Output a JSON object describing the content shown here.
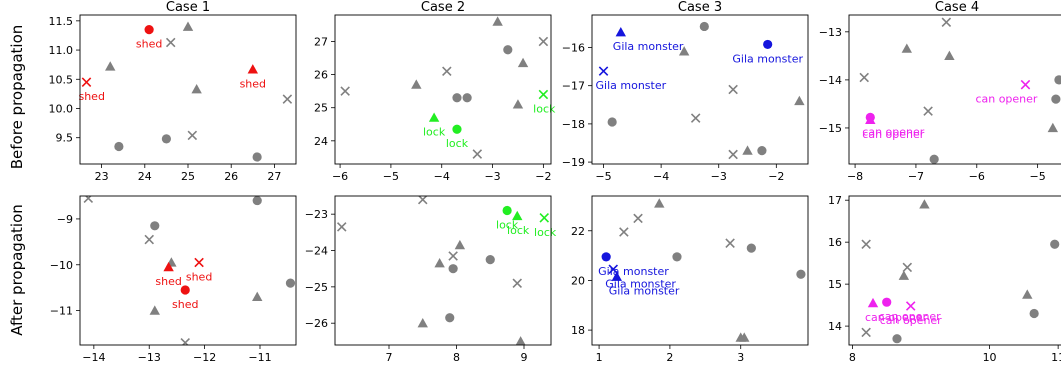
{
  "row_labels": [
    "Before propagation",
    "After propagation"
  ],
  "colors": {
    "gray": "#808080",
    "shed": "#ee1111",
    "lock": "#22ee22",
    "gila": "#1515dd",
    "opener": "#ee22ee"
  },
  "chart_data": [
    {
      "type": "scatter",
      "title": "Case 1",
      "row": 0,
      "col": 0,
      "xlim": [
        22.5,
        27.5
      ],
      "ylim": [
        9.05,
        11.6
      ],
      "xticks": [
        23,
        24,
        25,
        26,
        27
      ],
      "yticks": [
        9.5,
        10.0,
        10.5,
        11.0,
        11.5
      ],
      "xtick_labels": [
        "23",
        "24",
        "25",
        "26",
        "27"
      ],
      "ytick_labels": [
        "9.5",
        "10.0",
        "10.5",
        "11.0",
        "11.5"
      ],
      "background": [
        {
          "x": 25.0,
          "y": 11.4,
          "m": "triangle"
        },
        {
          "x": 24.6,
          "y": 11.13,
          "m": "x"
        },
        {
          "x": 23.2,
          "y": 10.72,
          "m": "triangle"
        },
        {
          "x": 25.2,
          "y": 10.33,
          "m": "triangle"
        },
        {
          "x": 27.3,
          "y": 10.16,
          "m": "x"
        },
        {
          "x": 25.1,
          "y": 9.54,
          "m": "x"
        },
        {
          "x": 24.5,
          "y": 9.48,
          "m": "circle"
        },
        {
          "x": 23.4,
          "y": 9.35,
          "m": "circle"
        },
        {
          "x": 26.6,
          "y": 9.17,
          "m": "circle"
        }
      ],
      "highlight": [
        {
          "x": 24.1,
          "y": 11.35,
          "m": "circle",
          "label": "shed",
          "color": "shed"
        },
        {
          "x": 26.5,
          "y": 10.67,
          "m": "triangle",
          "label": "shed",
          "color": "shed"
        },
        {
          "x": 22.65,
          "y": 10.45,
          "m": "x",
          "label": "shed",
          "color": "shed"
        }
      ]
    },
    {
      "type": "scatter",
      "title": "Case 2",
      "row": 0,
      "col": 1,
      "xlim": [
        -6.1,
        -1.85
      ],
      "ylim": [
        23.3,
        27.8
      ],
      "xticks": [
        -6,
        -5,
        -4,
        -3,
        -2
      ],
      "yticks": [
        24,
        25,
        26,
        27
      ],
      "xtick_labels": [
        "−6",
        "−5",
        "−4",
        "−3",
        "−2"
      ],
      "ytick_labels": [
        "24",
        "25",
        "26",
        "27"
      ],
      "background": [
        {
          "x": -2.9,
          "y": 27.6,
          "m": "triangle"
        },
        {
          "x": -2.0,
          "y": 27.0,
          "m": "x"
        },
        {
          "x": -2.7,
          "y": 26.75,
          "m": "circle"
        },
        {
          "x": -2.4,
          "y": 26.35,
          "m": "triangle"
        },
        {
          "x": -3.9,
          "y": 26.1,
          "m": "x"
        },
        {
          "x": -4.5,
          "y": 25.7,
          "m": "triangle"
        },
        {
          "x": -5.9,
          "y": 25.5,
          "m": "x"
        },
        {
          "x": -3.7,
          "y": 25.3,
          "m": "circle"
        },
        {
          "x": -3.5,
          "y": 25.3,
          "m": "circle"
        },
        {
          "x": -2.5,
          "y": 25.1,
          "m": "triangle"
        },
        {
          "x": -3.3,
          "y": 23.6,
          "m": "x"
        }
      ],
      "highlight": [
        {
          "x": -2.0,
          "y": 25.4,
          "m": "x",
          "label": "lock",
          "color": "lock"
        },
        {
          "x": -4.15,
          "y": 24.7,
          "m": "triangle",
          "label": "lock",
          "color": "lock"
        },
        {
          "x": -3.7,
          "y": 24.35,
          "m": "circle",
          "label": "lock",
          "color": "lock"
        }
      ]
    },
    {
      "type": "scatter",
      "title": "Case 3",
      "row": 0,
      "col": 2,
      "xlim": [
        -5.2,
        -1.45
      ],
      "ylim": [
        -19.05,
        -15.15
      ],
      "xticks": [
        -5,
        -4,
        -3,
        -2
      ],
      "yticks": [
        -19,
        -18,
        -17,
        -16
      ],
      "xtick_labels": [
        "−5",
        "−4",
        "−3",
        "−2"
      ],
      "ytick_labels": [
        "−19",
        "−18",
        "−17",
        "−16"
      ],
      "background": [
        {
          "x": -3.25,
          "y": -15.45,
          "m": "circle"
        },
        {
          "x": -3.6,
          "y": -16.1,
          "m": "triangle"
        },
        {
          "x": -2.75,
          "y": -17.1,
          "m": "x"
        },
        {
          "x": -1.6,
          "y": -17.4,
          "m": "triangle"
        },
        {
          "x": -3.4,
          "y": -17.85,
          "m": "x"
        },
        {
          "x": -4.85,
          "y": -17.95,
          "m": "circle"
        },
        {
          "x": -2.25,
          "y": -18.7,
          "m": "circle"
        },
        {
          "x": -2.5,
          "y": -18.7,
          "m": "triangle"
        },
        {
          "x": -2.75,
          "y": -18.8,
          "m": "x"
        }
      ],
      "highlight": [
        {
          "x": -4.7,
          "y": -15.6,
          "m": "triangle",
          "label": "Gila monster",
          "color": "gila"
        },
        {
          "x": -2.15,
          "y": -15.92,
          "m": "circle",
          "label": "Gila monster",
          "color": "gila"
        },
        {
          "x": -5.0,
          "y": -16.62,
          "m": "x",
          "label": "Gila monster",
          "color": "gila"
        }
      ]
    },
    {
      "type": "scatter",
      "title": "Case 4",
      "row": 0,
      "col": 3,
      "xlim": [
        -8.1,
        -4.55
      ],
      "ylim": [
        -15.75,
        -12.65
      ],
      "xticks": [
        -8,
        -7,
        -6,
        -5
      ],
      "yticks": [
        -15,
        -14,
        -13
      ],
      "xtick_labels": [
        "−8",
        "−7",
        "−6",
        "−5"
      ],
      "ytick_labels": [
        "−15",
        "−14",
        "−13"
      ],
      "background": [
        {
          "x": -6.5,
          "y": -12.8,
          "m": "x"
        },
        {
          "x": -7.15,
          "y": -13.35,
          "m": "triangle"
        },
        {
          "x": -6.45,
          "y": -13.5,
          "m": "triangle"
        },
        {
          "x": -7.85,
          "y": -13.95,
          "m": "x"
        },
        {
          "x": -4.65,
          "y": -14.0,
          "m": "circle"
        },
        {
          "x": -4.7,
          "y": -14.4,
          "m": "circle"
        },
        {
          "x": -6.8,
          "y": -14.65,
          "m": "x"
        },
        {
          "x": -4.75,
          "y": -15.0,
          "m": "triangle"
        },
        {
          "x": -6.7,
          "y": -15.65,
          "m": "circle"
        }
      ],
      "highlight": [
        {
          "x": -5.2,
          "y": -14.1,
          "m": "x",
          "label": "can opener",
          "color": "opener"
        },
        {
          "x": -7.75,
          "y": -14.78,
          "m": "circle",
          "label": "can opener",
          "color": "opener"
        },
        {
          "x": -7.75,
          "y": -14.83,
          "m": "triangle",
          "label": "can opener",
          "color": "opener"
        }
      ]
    },
    {
      "type": "scatter",
      "title": "",
      "row": 1,
      "col": 0,
      "xlim": [
        -14.25,
        -10.35
      ],
      "ylim": [
        -11.75,
        -8.5
      ],
      "xticks": [
        -14,
        -13,
        -12,
        -11
      ],
      "yticks": [
        -11,
        -10,
        -9
      ],
      "xtick_labels": [
        "−14",
        "−13",
        "−12",
        "−11"
      ],
      "ytick_labels": [
        "−11",
        "−10",
        "−9"
      ],
      "background": [
        {
          "x": -14.1,
          "y": -8.55,
          "m": "x"
        },
        {
          "x": -11.05,
          "y": -8.6,
          "m": "circle"
        },
        {
          "x": -12.9,
          "y": -9.15,
          "m": "circle"
        },
        {
          "x": -13.0,
          "y": -9.45,
          "m": "x"
        },
        {
          "x": -12.6,
          "y": -9.95,
          "m": "triangle"
        },
        {
          "x": -10.45,
          "y": -10.4,
          "m": "circle"
        },
        {
          "x": -11.05,
          "y": -10.7,
          "m": "triangle"
        },
        {
          "x": -12.9,
          "y": -11.0,
          "m": "triangle"
        },
        {
          "x": -12.35,
          "y": -11.7,
          "m": "x"
        }
      ],
      "highlight": [
        {
          "x": -12.65,
          "y": -10.05,
          "m": "triangle",
          "label": "shed",
          "color": "shed"
        },
        {
          "x": -12.1,
          "y": -9.95,
          "m": "x",
          "label": "shed",
          "color": "shed"
        },
        {
          "x": -12.35,
          "y": -10.55,
          "m": "circle",
          "label": "shed",
          "color": "shed"
        }
      ]
    },
    {
      "type": "scatter",
      "title": "",
      "row": 1,
      "col": 1,
      "xlim": [
        6.2,
        9.4
      ],
      "ylim": [
        -26.6,
        -22.5
      ],
      "xticks": [
        7,
        8,
        9
      ],
      "yticks": [
        -26,
        -25,
        -24,
        -23
      ],
      "xtick_labels": [
        "7",
        "8",
        "9"
      ],
      "ytick_labels": [
        "−26",
        "−25",
        "−24",
        "−23"
      ],
      "background": [
        {
          "x": 7.5,
          "y": -22.6,
          "m": "x"
        },
        {
          "x": 6.3,
          "y": -23.35,
          "m": "x"
        },
        {
          "x": 8.05,
          "y": -23.85,
          "m": "triangle"
        },
        {
          "x": 7.95,
          "y": -24.15,
          "m": "x"
        },
        {
          "x": 7.75,
          "y": -24.35,
          "m": "triangle"
        },
        {
          "x": 8.5,
          "y": -24.25,
          "m": "circle"
        },
        {
          "x": 7.95,
          "y": -24.5,
          "m": "circle"
        },
        {
          "x": 8.9,
          "y": -24.9,
          "m": "x"
        },
        {
          "x": 7.9,
          "y": -25.85,
          "m": "circle"
        },
        {
          "x": 7.5,
          "y": -26.0,
          "m": "triangle"
        },
        {
          "x": 8.95,
          "y": -26.5,
          "m": "triangle"
        }
      ],
      "highlight": [
        {
          "x": 8.75,
          "y": -22.9,
          "m": "circle",
          "label": "lock",
          "color": "lock"
        },
        {
          "x": 8.9,
          "y": -23.05,
          "m": "triangle",
          "label": "lock",
          "color": "lock"
        },
        {
          "x": 9.3,
          "y": -23.1,
          "m": "x",
          "label": "lock",
          "color": "lock"
        }
      ]
    },
    {
      "type": "scatter",
      "title": "",
      "row": 1,
      "col": 2,
      "xlim": [
        0.9,
        3.95
      ],
      "ylim": [
        17.4,
        23.4
      ],
      "xticks": [
        1,
        2,
        3
      ],
      "yticks": [
        18,
        20,
        22
      ],
      "xtick_labels": [
        "1",
        "2",
        "3"
      ],
      "ytick_labels": [
        "18",
        "20",
        "22"
      ],
      "background": [
        {
          "x": 1.85,
          "y": 23.1,
          "m": "triangle"
        },
        {
          "x": 1.55,
          "y": 22.5,
          "m": "x"
        },
        {
          "x": 1.35,
          "y": 21.95,
          "m": "x"
        },
        {
          "x": 2.85,
          "y": 21.5,
          "m": "x"
        },
        {
          "x": 3.15,
          "y": 21.3,
          "m": "circle"
        },
        {
          "x": 2.1,
          "y": 20.95,
          "m": "circle"
        },
        {
          "x": 3.85,
          "y": 20.25,
          "m": "circle"
        },
        {
          "x": 3.0,
          "y": 17.7,
          "m": "triangle"
        },
        {
          "x": 3.05,
          "y": 17.7,
          "m": "triangle"
        }
      ],
      "highlight": [
        {
          "x": 1.1,
          "y": 20.95,
          "m": "circle",
          "label": "Gila monster",
          "color": "gila"
        },
        {
          "x": 1.2,
          "y": 20.45,
          "m": "x",
          "label": "Gila monster",
          "color": "gila"
        },
        {
          "x": 1.25,
          "y": 20.15,
          "m": "triangle",
          "label": "Gila monster",
          "color": "gila"
        }
      ]
    },
    {
      "type": "scatter",
      "title": "",
      "row": 1,
      "col": 3,
      "xlim": [
        7.95,
        11.1
      ],
      "ylim": [
        13.55,
        17.1
      ],
      "xticks": [
        8,
        10,
        11
      ],
      "yticks": [
        14,
        15,
        16,
        17
      ],
      "xtick_labels": [
        "8",
        "10",
        "11"
      ],
      "ytick_labels": [
        "14",
        "15",
        "16",
        "17"
      ],
      "background": [
        {
          "x": 9.05,
          "y": 16.9,
          "m": "triangle"
        },
        {
          "x": 8.2,
          "y": 15.95,
          "m": "x"
        },
        {
          "x": 10.95,
          "y": 15.95,
          "m": "circle"
        },
        {
          "x": 8.8,
          "y": 15.4,
          "m": "x"
        },
        {
          "x": 8.75,
          "y": 15.2,
          "m": "triangle"
        },
        {
          "x": 10.55,
          "y": 14.75,
          "m": "triangle"
        },
        {
          "x": 10.65,
          "y": 14.3,
          "m": "circle"
        },
        {
          "x": 8.2,
          "y": 13.85,
          "m": "x"
        },
        {
          "x": 8.65,
          "y": 13.7,
          "m": "circle"
        }
      ],
      "highlight": [
        {
          "x": 8.3,
          "y": 14.55,
          "m": "triangle",
          "label": "can opener",
          "color": "opener"
        },
        {
          "x": 8.5,
          "y": 14.57,
          "m": "circle",
          "label": "can opener",
          "color": "opener"
        },
        {
          "x": 8.85,
          "y": 14.48,
          "m": "x",
          "label": "can opener",
          "color": "opener"
        }
      ]
    }
  ]
}
